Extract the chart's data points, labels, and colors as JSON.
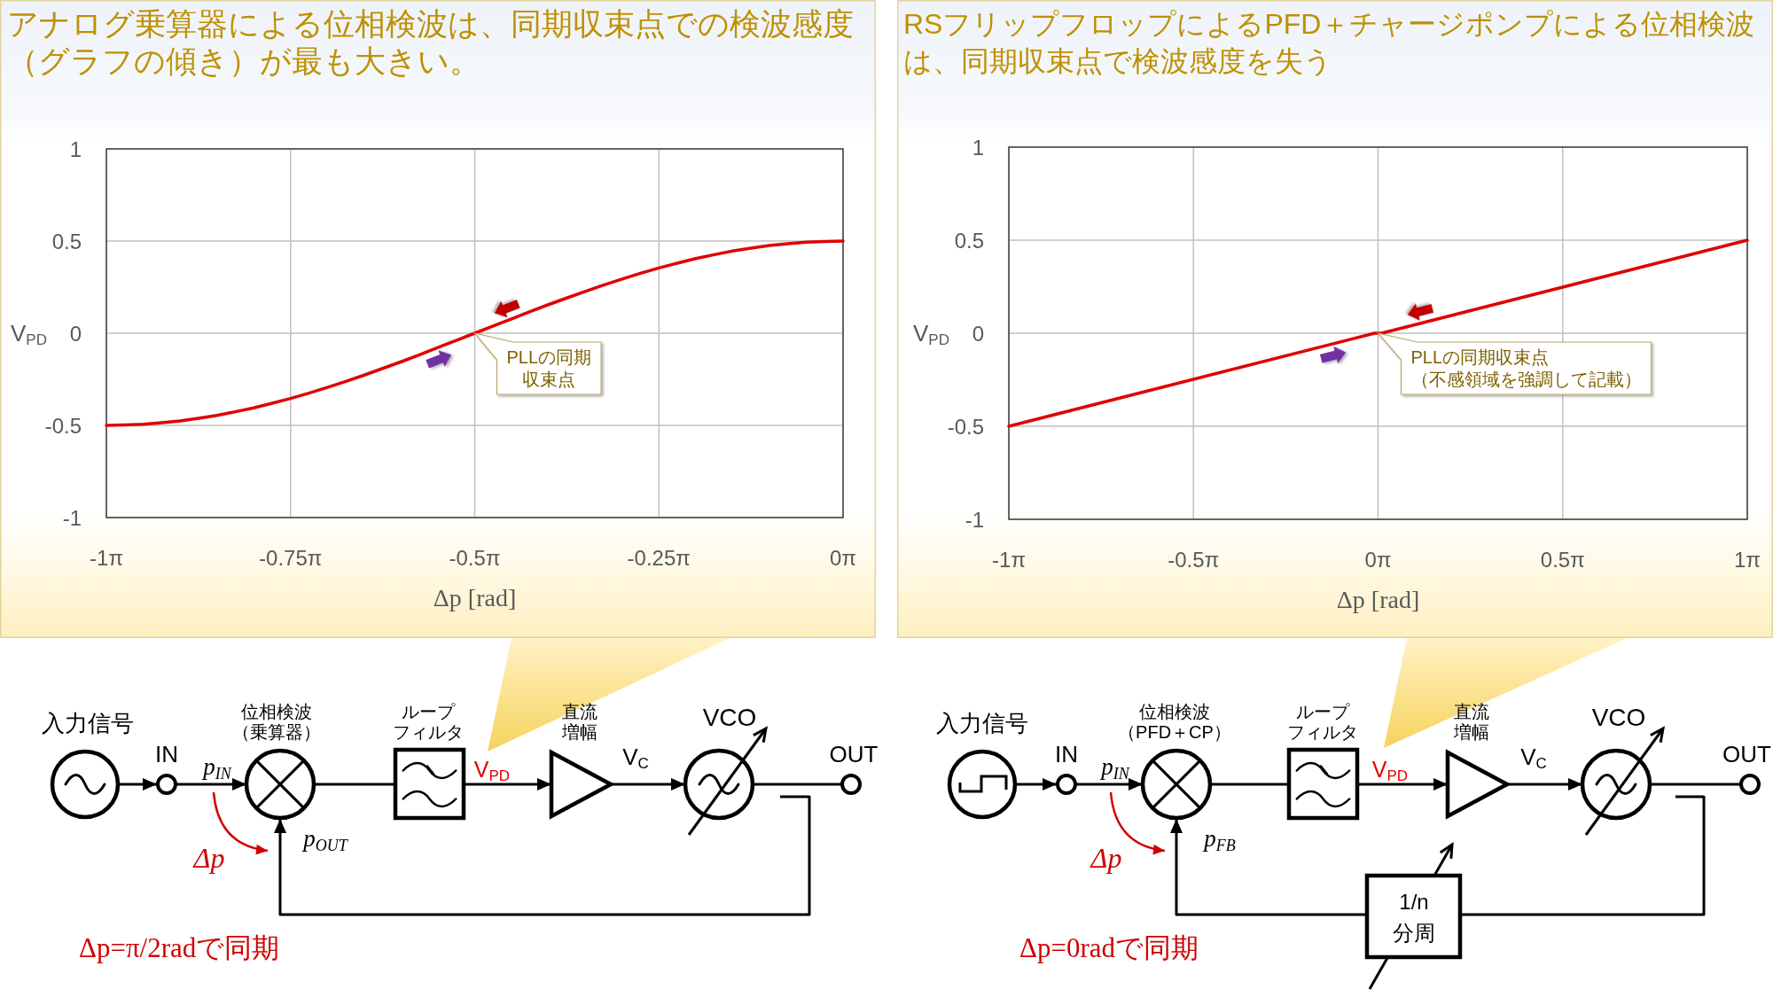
{
  "chart_data": [
    {
      "type": "line",
      "title": "アナログ乗算器による位相検波は、同期収束点での検波感度（グラフの傾き）が最も大きい。",
      "xlabel": "Δp [rad]",
      "ylabel": "V$_{PD}$",
      "x": [
        -3.1416,
        -3.0631,
        -2.9845,
        -2.906,
        -2.8274,
        -2.7489,
        -2.6704,
        -2.5918,
        -2.5133,
        -2.4347,
        -2.3562,
        -2.2777,
        -2.1991,
        -2.1206,
        -2.042,
        -1.9635,
        -1.885,
        -1.8064,
        -1.7279,
        -1.6493,
        -1.5708,
        -1.4923,
        -1.4137,
        -1.3352,
        -1.2566,
        -1.1781,
        -1.0996,
        -1.021,
        -0.9425,
        -0.8639,
        -0.7854,
        -0.7069,
        -0.6283,
        -0.5498,
        -0.4712,
        -0.3927,
        -0.3142,
        -0.2356,
        -0.1571,
        -0.0785,
        0
      ],
      "series": [
        {
          "color": "#e00000",
          "values": [
            -0.5,
            -0.498,
            -0.494,
            -0.486,
            -0.476,
            -0.462,
            -0.446,
            -0.426,
            -0.405,
            -0.38,
            -0.354,
            -0.325,
            -0.294,
            -0.261,
            -0.227,
            -0.191,
            -0.155,
            -0.117,
            -0.078,
            -0.039,
            0,
            0.039,
            0.078,
            0.117,
            0.155,
            0.191,
            0.227,
            0.261,
            0.294,
            0.325,
            0.354,
            0.38,
            0.405,
            0.426,
            0.446,
            0.462,
            0.476,
            0.486,
            0.494,
            0.498,
            0.5
          ]
        }
      ],
      "xlim": [
        -3.1416,
        0
      ],
      "ylim": [
        -1,
        1
      ],
      "xticks": [
        {
          "value": -3.1416,
          "label": "-1π"
        },
        {
          "value": -2.3562,
          "label": "-0.75π"
        },
        {
          "value": -1.5708,
          "label": "-0.5π"
        },
        {
          "value": -0.7854,
          "label": "-0.25π"
        },
        {
          "value": 0,
          "label": "0π"
        }
      ],
      "yticks": [
        -1,
        -0.5,
        0,
        0.5,
        1
      ],
      "grid": true,
      "annotations": [
        {
          "text": "PLLの同期収束点",
          "x": -1.5708,
          "y": 0
        }
      ]
    },
    {
      "type": "line",
      "title": "RSフリップフロップによるPFD＋チャージポンプによる位相検波は、同期収束点で検波感度を失う",
      "xlabel": "Δp [rad]",
      "ylabel": "V$_{PD}$",
      "x": [
        -3.1416,
        -0.03,
        0.03,
        3.1416
      ],
      "series": [
        {
          "color": "#e00000",
          "values": [
            -0.5,
            0,
            0,
            0.5
          ]
        }
      ],
      "xlim": [
        -3.1416,
        3.1416
      ],
      "ylim": [
        -1,
        1
      ],
      "xticks": [
        {
          "value": -3.1416,
          "label": "-1π"
        },
        {
          "value": -1.5708,
          "label": "-0.5π"
        },
        {
          "value": 0,
          "label": "0π"
        },
        {
          "value": 1.5708,
          "label": "0.5π"
        },
        {
          "value": 3.1416,
          "label": "1π"
        }
      ],
      "yticks": [
        -1,
        -0.5,
        0,
        0.5,
        1
      ],
      "grid": true,
      "annotations": [
        {
          "text": "PLLの同期収束点（不感領域を強調して記載）",
          "x": 0,
          "y": 0
        }
      ]
    },
    {
      "type": "other",
      "annotations": [
        "入力信号",
        "IN",
        "p$_{IN}$",
        "位相検波（乗算器）",
        "ループフィルタ",
        "V$_{PD}$",
        "直流増幅",
        "V$_{C}$",
        "VCO",
        "OUT",
        "p$_{OUT}$",
        "Δp",
        "Δp=π/2radで同期"
      ]
    },
    {
      "type": "other",
      "annotations": [
        "入力信号",
        "IN",
        "p$_{IN}$",
        "位相検波（PFD＋CP）",
        "ループフィルタ",
        "V$_{PD}$",
        "直流増幅",
        "V$_{C}$",
        "VCO",
        "OUT",
        "p$_{FB}$",
        "Δp",
        "Δp=0radで同期",
        "1/n分周"
      ]
    }
  ]
}
